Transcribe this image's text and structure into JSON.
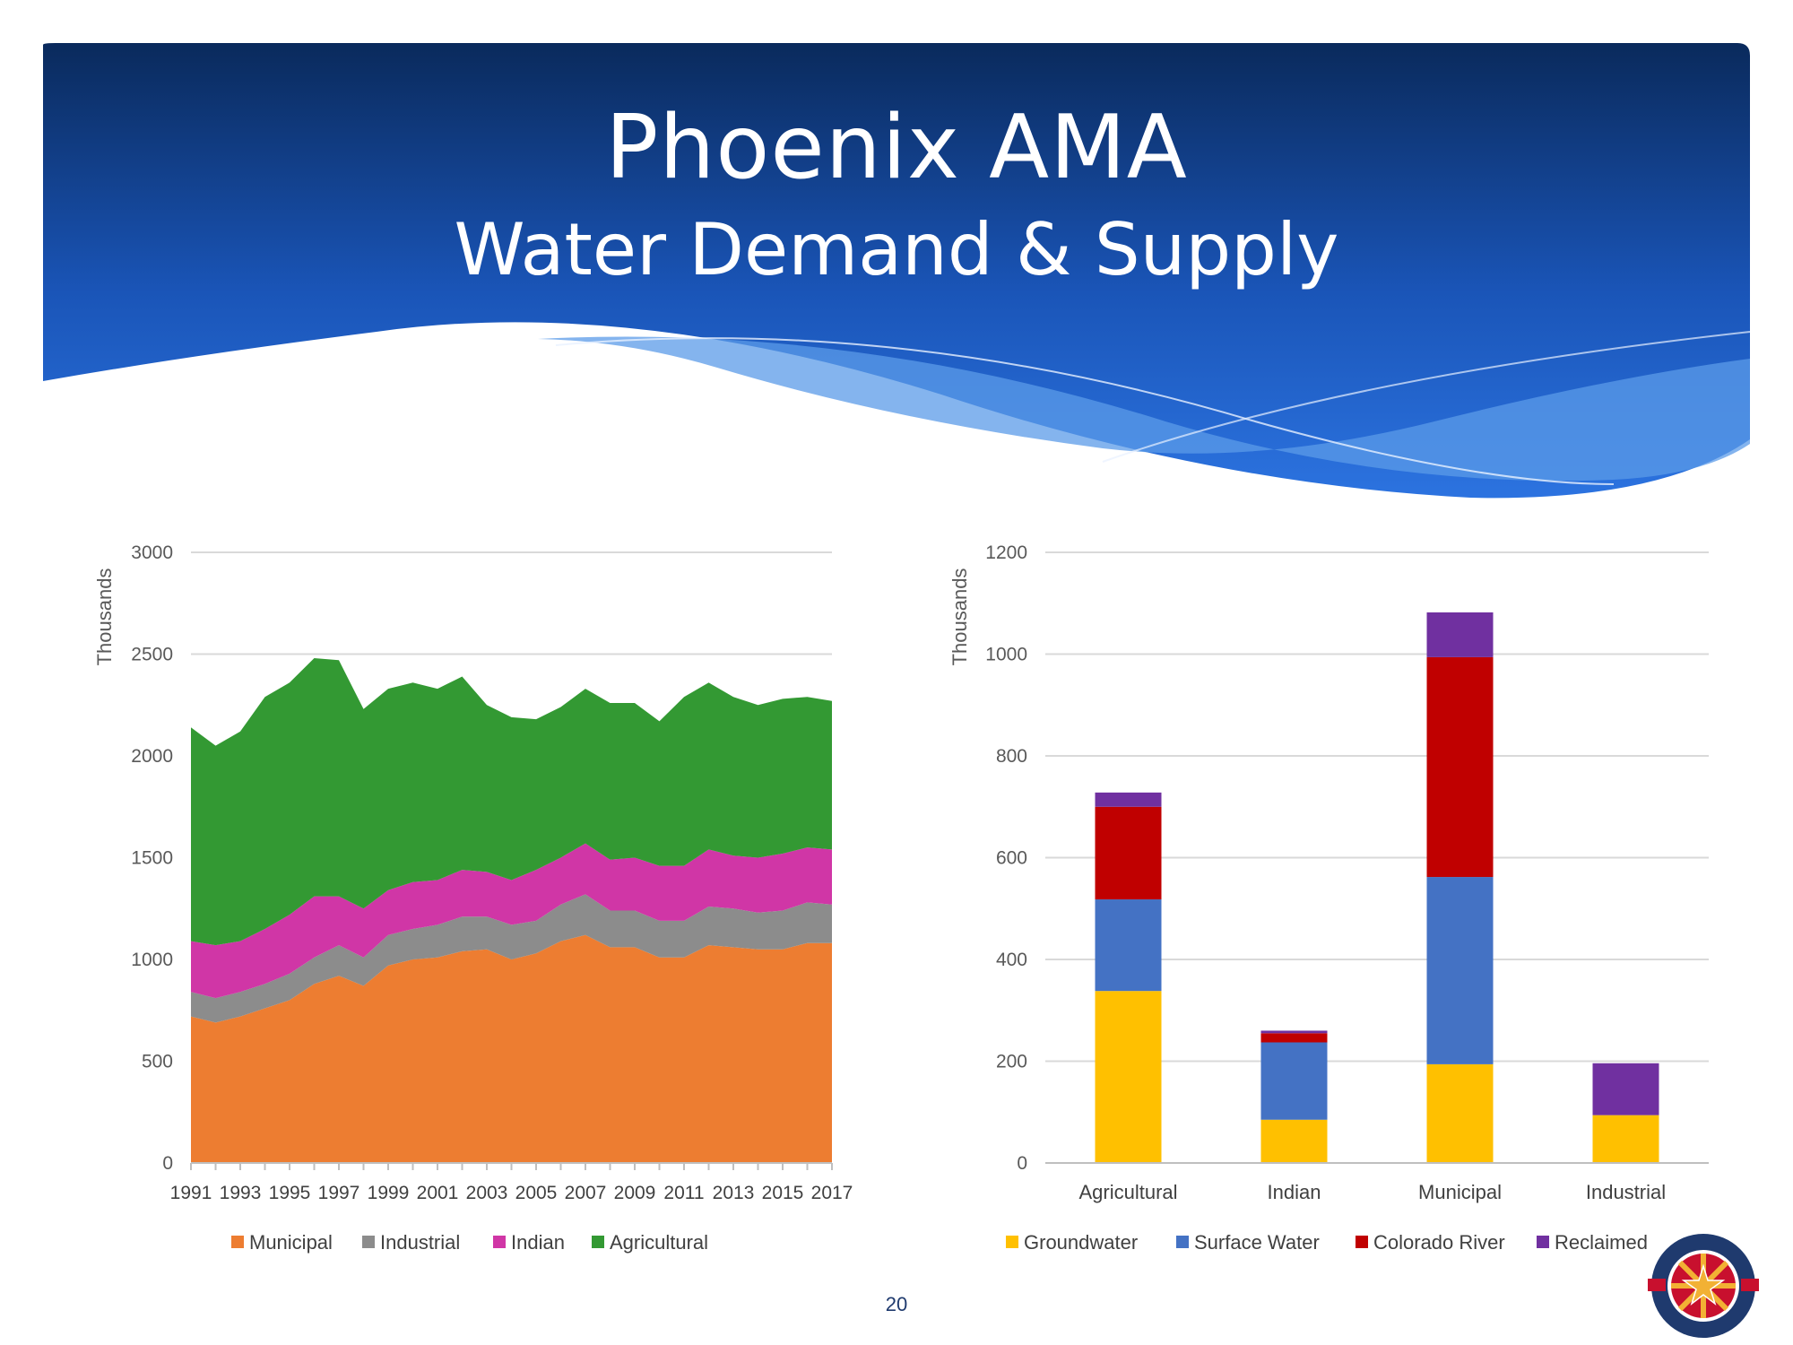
{
  "slide": {
    "title": "Phoenix AMA",
    "subtitle": "Water Demand & Supply",
    "page_number": "20"
  },
  "colors": {
    "banner_top": "#0a2a5c",
    "banner_bottom": "#2c73e0",
    "municipal": "#ED7D31",
    "industrial": "#8C8C8C",
    "indian": "#D036A6",
    "agricultural": "#339933",
    "groundwater": "#FFC000",
    "surface_water": "#4472C4",
    "colorado_river": "#C00000",
    "reclaimed": "#7030A0"
  },
  "logo": {
    "text_top": "ARIZONA DEPARTMENT",
    "text_bottom": "WATER RESOURCES",
    "est": "EST.",
    "year": "1980",
    "of": "of",
    "icon": "arizona-star-seal-icon"
  },
  "chart_data": [
    {
      "type": "area",
      "stacked": true,
      "ylabel": "Thousands",
      "ylim": [
        0,
        3000
      ],
      "yticks": [
        0,
        500,
        1000,
        1500,
        2000,
        2500,
        3000
      ],
      "x": [
        1991,
        1992,
        1993,
        1994,
        1995,
        1996,
        1997,
        1998,
        1999,
        2000,
        2001,
        2002,
        2003,
        2004,
        2005,
        2006,
        2007,
        2008,
        2009,
        2010,
        2011,
        2012,
        2013,
        2014,
        2015,
        2016,
        2017
      ],
      "x_tick_labels": [
        "1991",
        "1993",
        "1995",
        "1997",
        "1999",
        "2001",
        "2003",
        "2005",
        "2007",
        "2009",
        "2011",
        "2013",
        "2015",
        "2017"
      ],
      "grid": true,
      "legend": "bottom",
      "series": [
        {
          "name": "Municipal",
          "color": "#ED7D31",
          "values": [
            720,
            690,
            720,
            760,
            800,
            880,
            920,
            870,
            970,
            1000,
            1010,
            1040,
            1050,
            1000,
            1030,
            1090,
            1120,
            1060,
            1060,
            1010,
            1010,
            1070,
            1060,
            1050,
            1050,
            1080,
            1080
          ]
        },
        {
          "name": "Industrial",
          "color": "#8C8C8C",
          "values": [
            120,
            120,
            120,
            120,
            130,
            130,
            150,
            140,
            150,
            150,
            160,
            170,
            160,
            170,
            160,
            180,
            200,
            180,
            180,
            180,
            180,
            190,
            190,
            180,
            190,
            200,
            190
          ]
        },
        {
          "name": "Indian",
          "color": "#D036A6",
          "values": [
            250,
            260,
            250,
            270,
            290,
            300,
            240,
            240,
            220,
            230,
            220,
            230,
            220,
            220,
            250,
            230,
            250,
            250,
            260,
            270,
            270,
            280,
            260,
            270,
            280,
            270,
            270
          ]
        },
        {
          "name": "Agricultural",
          "color": "#339933",
          "values": [
            1050,
            980,
            1030,
            1140,
            1140,
            1170,
            1160,
            980,
            990,
            980,
            940,
            950,
            820,
            800,
            740,
            740,
            760,
            770,
            760,
            710,
            830,
            820,
            780,
            750,
            760,
            740,
            730
          ]
        }
      ]
    },
    {
      "type": "bar",
      "stacked": true,
      "ylabel": "Thousands",
      "ylim": [
        0,
        1200
      ],
      "yticks": [
        0,
        200,
        400,
        600,
        800,
        1000,
        1200
      ],
      "categories": [
        "Agricultural",
        "Indian",
        "Municipal",
        "Industrial"
      ],
      "grid": true,
      "legend": "bottom",
      "series": [
        {
          "name": "Groundwater",
          "color": "#FFC000",
          "values": [
            338,
            85,
            194,
            94
          ]
        },
        {
          "name": "Surface Water",
          "color": "#4472C4",
          "values": [
            180,
            152,
            368,
            0
          ]
        },
        {
          "name": "Colorado River",
          "color": "#C00000",
          "values": [
            182,
            18,
            432,
            0
          ]
        },
        {
          "name": "Reclaimed",
          "color": "#7030A0",
          "values": [
            28,
            5,
            88,
            102
          ]
        }
      ]
    }
  ]
}
